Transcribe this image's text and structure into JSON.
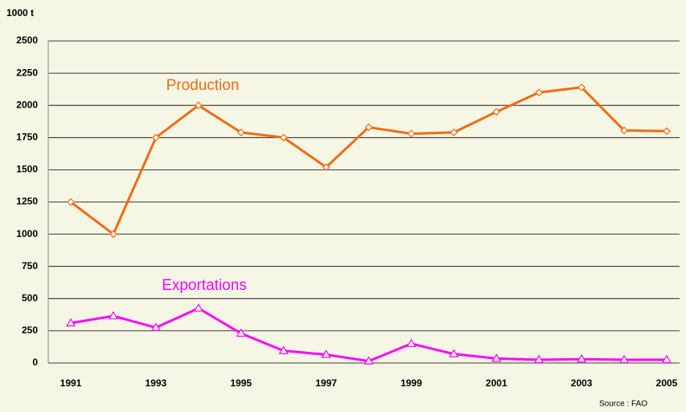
{
  "chart_data": {
    "type": "line",
    "y_label": "1000 t",
    "source": "Source : FAO",
    "categories": [
      "1991",
      null,
      "1993",
      null,
      "1995",
      null,
      "1997",
      null,
      "1999",
      null,
      "2001",
      null,
      "2003",
      null,
      "2005"
    ],
    "series": [
      {
        "name": "Production",
        "color": "#f26a10",
        "marker": "diamond",
        "values": [
          1250,
          1000,
          1750,
          2000,
          1790,
          1750,
          1520,
          1830,
          1780,
          1790,
          1950,
          2100,
          2140,
          1805,
          1800
        ]
      },
      {
        "name": "Exportations",
        "color": "#ff00ff",
        "marker": "triangle",
        "values": [
          310,
          365,
          275,
          425,
          230,
          95,
          65,
          15,
          150,
          70,
          35,
          25,
          30,
          25,
          25
        ]
      }
    ],
    "ylim": [
      0,
      2500
    ],
    "yticks": [
      0,
      250,
      500,
      750,
      1000,
      1250,
      1500,
      1750,
      2000,
      2250,
      2500
    ],
    "grid": true
  }
}
